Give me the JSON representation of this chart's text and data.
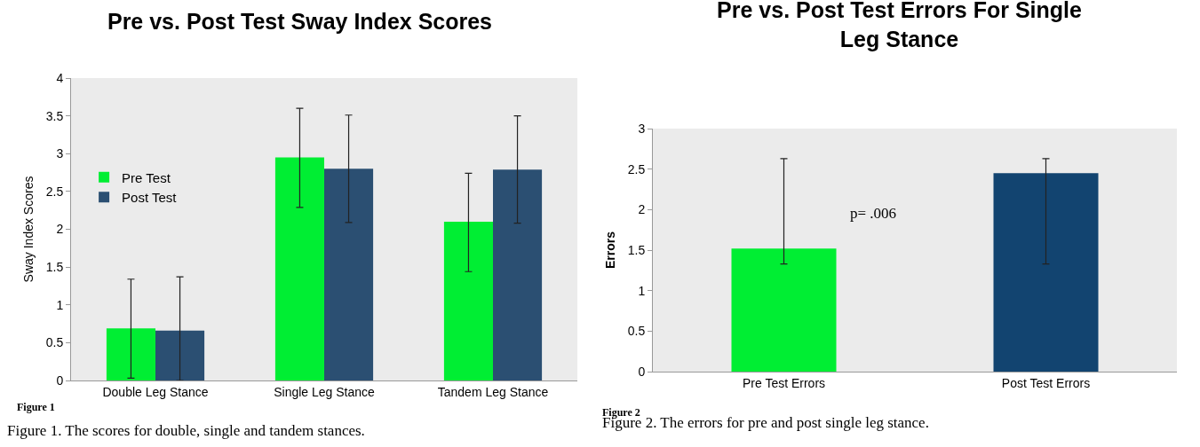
{
  "chart_data": [
    {
      "type": "bar",
      "title": "Pre vs. Post Test Sway Index Scores",
      "ylabel": "Sway Index Scores",
      "categories": [
        "Double Leg Stance",
        "Single Leg Stance",
        "Tandem Leg Stance"
      ],
      "series": [
        {
          "name": "Pre Test",
          "color": "#00ee33",
          "values": [
            0.69,
            2.95,
            2.1
          ],
          "errors": [
            [
              0.03,
              1.34
            ],
            [
              2.29,
              3.6
            ],
            [
              1.44,
              2.74
            ]
          ]
        },
        {
          "name": "Post Test",
          "color": "#2b4f72",
          "values": [
            0.66,
            2.8,
            2.79
          ],
          "errors": [
            [
              0,
              1.37
            ],
            [
              2.09,
              3.51
            ],
            [
              2.08,
              3.5
            ]
          ]
        }
      ],
      "ylim": [
        0,
        4
      ],
      "yticks": [
        0,
        0.5,
        1,
        1.5,
        2,
        2.5,
        3,
        3.5,
        4
      ],
      "grid": false,
      "legend": "top left",
      "annotations": [
        "Figure 1",
        "Figure 1. The scores for double, single and tandem stances."
      ]
    },
    {
      "type": "bar",
      "title": "Pre vs. Post Test Errors For Single Leg Stance",
      "ylabel": "Errors",
      "categories": [
        "Pre Test Errors",
        "Post Test Errors"
      ],
      "values": [
        1.52,
        2.45
      ],
      "colors": [
        "#00ee33",
        "#124470"
      ],
      "errors": [
        [
          1.33,
          2.63
        ],
        [
          1.33,
          2.63
        ]
      ],
      "ylim": [
        0,
        3
      ],
      "yticks": [
        0,
        0.5,
        1,
        1.5,
        2,
        2.5,
        3
      ],
      "grid": false,
      "legend": false,
      "annotations": [
        "p= .006",
        "Figure 2",
        "Figure 2. The errors for pre and post single leg stance."
      ]
    }
  ]
}
